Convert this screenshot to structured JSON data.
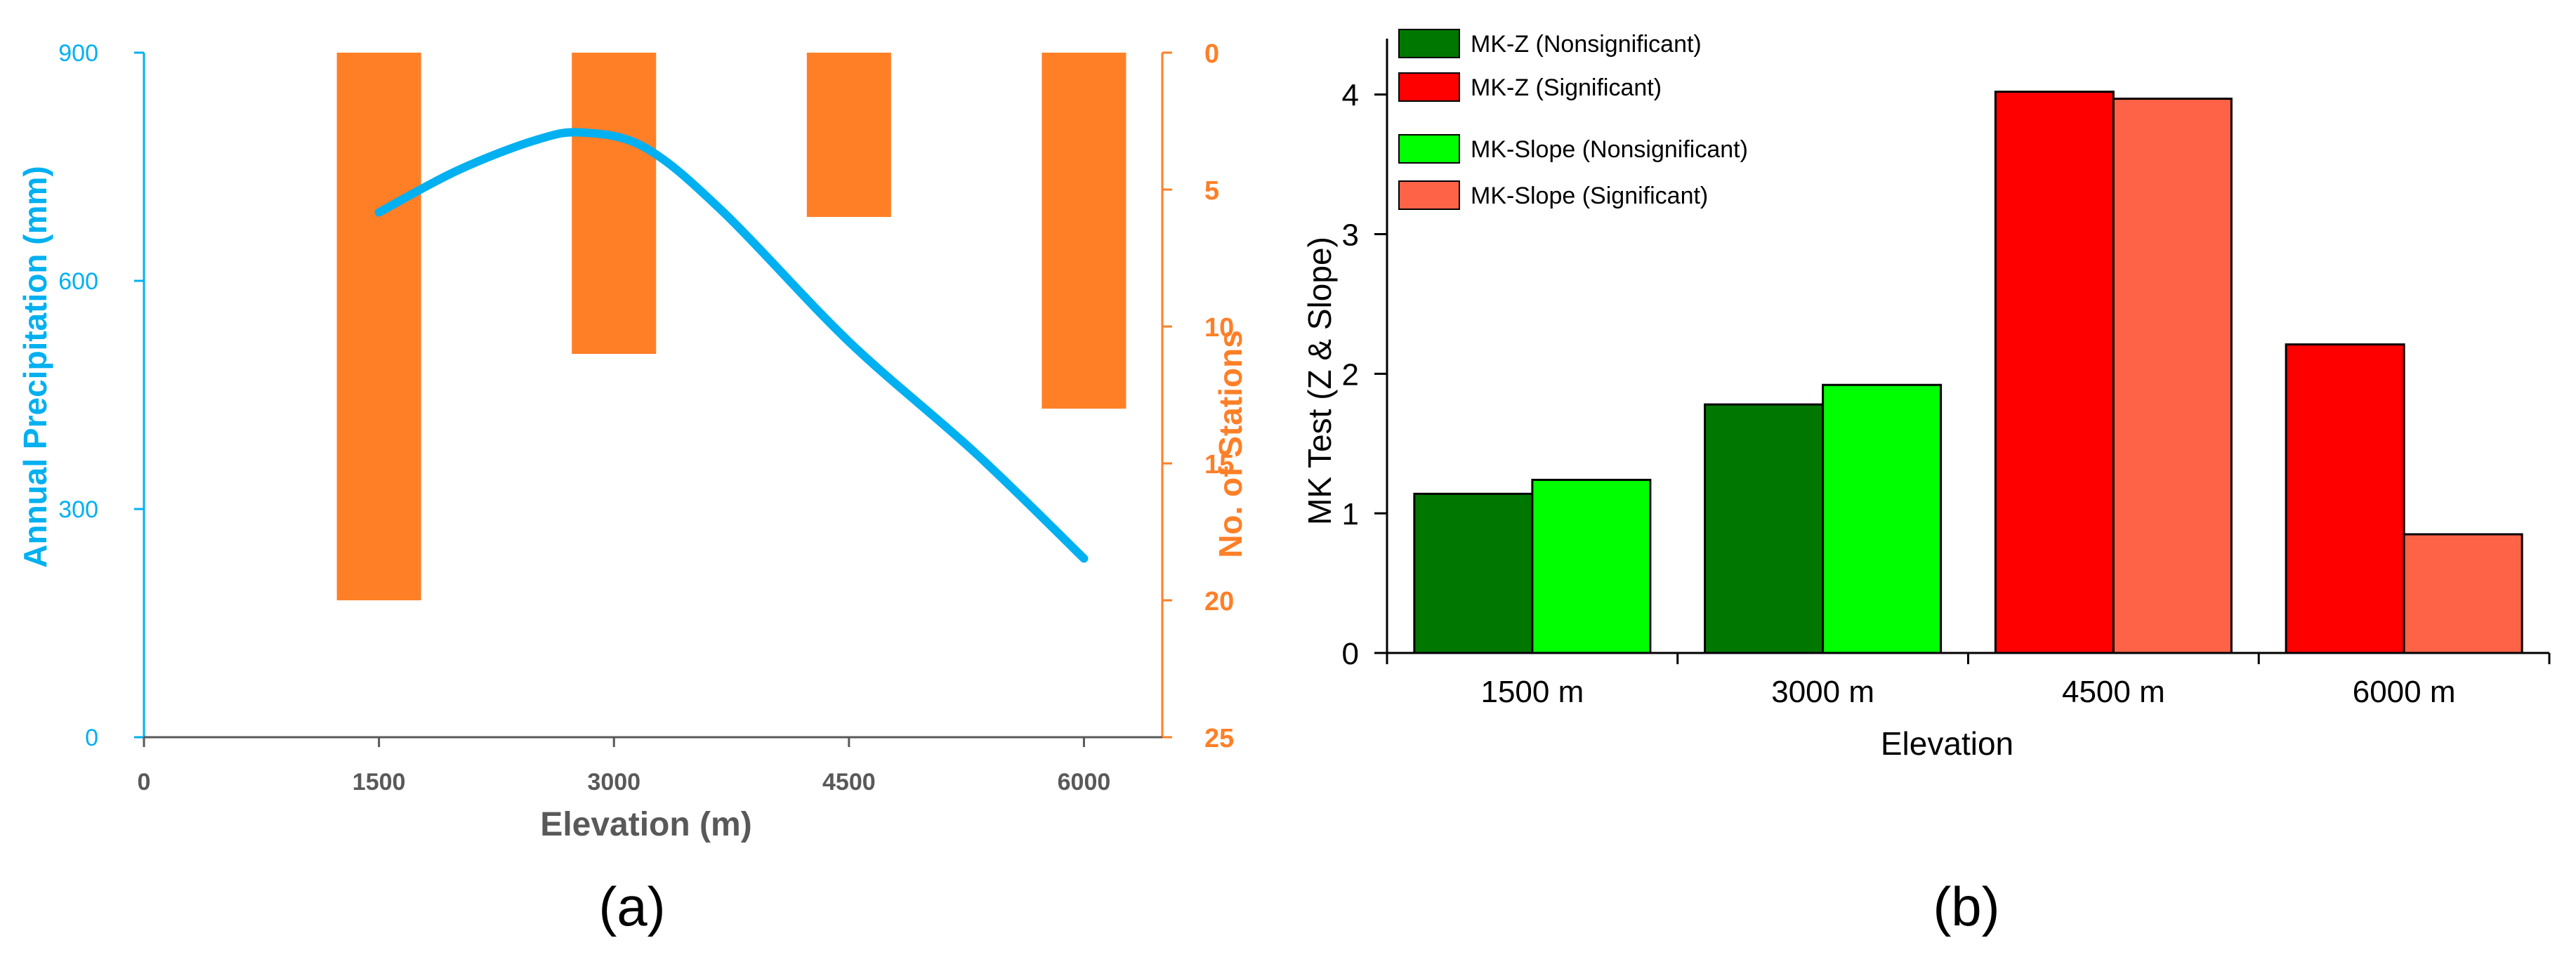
{
  "colors": {
    "precip_line": "#00b0f0",
    "stations_bar": "#ff7f27",
    "mk_z_nonsig": "#007800",
    "mk_z_sig": "#ff0000",
    "mk_slope_nonsig": "#00ff00",
    "mk_slope_sig": "#ff6347",
    "axis_gray": "#595959"
  },
  "chart_data": [
    {
      "panel_label": "(a)",
      "type": "line+bar",
      "xlabel": "Elevation (m)",
      "xlim": [
        0,
        6500
      ],
      "xticks": [
        "0",
        "1500",
        "3000",
        "4500",
        "6000"
      ],
      "xtick_values": [
        0,
        1500,
        3000,
        4500,
        6000
      ],
      "y_left": {
        "label": "Annual Precipitation (mm)",
        "ylim": [
          0,
          900
        ],
        "ticks": [
          "0",
          "300",
          "600",
          "900"
        ],
        "tick_values": [
          0,
          300,
          600,
          900
        ]
      },
      "y_right": {
        "label": "No. of Stations",
        "ylim": [
          0,
          25
        ],
        "inverted": true,
        "ticks": [
          "0",
          "5",
          "10",
          "15",
          "20",
          "25"
        ],
        "tick_values": [
          0,
          5,
          10,
          15,
          20,
          25
        ]
      },
      "line_series": {
        "name": "Annual Precipitation",
        "x": [
          1500,
          2000,
          2500,
          2800,
          3200,
          3700,
          4500,
          5300,
          6000
        ],
        "y": [
          690,
          745,
          785,
          795,
          775,
          690,
          520,
          375,
          235
        ]
      },
      "bar_series": {
        "name": "No. of Stations",
        "x": [
          1500,
          3000,
          4500,
          6000
        ],
        "values": [
          20,
          11,
          6,
          13
        ]
      }
    },
    {
      "panel_label": "(b)",
      "type": "bar",
      "xlabel": "Elevation",
      "ylabel": "MK Test (Z & Slope)",
      "ylim": [
        0,
        4.3
      ],
      "yticks": [
        "0",
        "1",
        "2",
        "3",
        "4"
      ],
      "ytick_values": [
        0,
        1,
        2,
        3,
        4
      ],
      "categories": [
        "1500 m",
        "3000 m",
        "4500 m",
        "6000 m"
      ],
      "series": [
        {
          "name": "MK-Z",
          "values": [
            1.14,
            1.78,
            4.02,
            2.21
          ]
        },
        {
          "name": "MK-Slope",
          "values": [
            1.24,
            1.92,
            3.97,
            0.85
          ]
        }
      ],
      "significant": [
        false,
        false,
        true,
        true
      ],
      "legend": [
        "MK-Z (Nonsignificant)",
        "MK-Z (Significant)",
        "MK-Slope (Nonsignificant)",
        "MK-Slope (Significant)"
      ],
      "legend_position": "top-left"
    }
  ]
}
